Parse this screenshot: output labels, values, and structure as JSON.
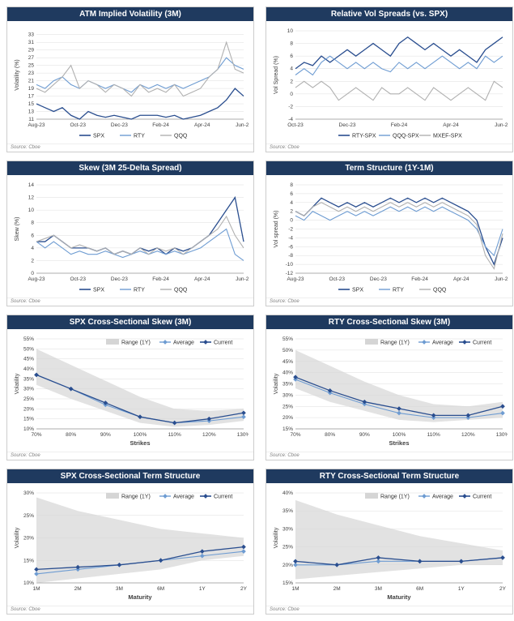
{
  "source_text": "Source: Cboe",
  "palette": {
    "navy": "#1f3a5f",
    "dark_blue": "#2a4e8f",
    "mid_blue": "#6e9cd2",
    "light_gray": "#b0b0b0",
    "grid": "#dddddd",
    "text": "#404040",
    "range_fill": "#d5d5d5"
  },
  "charts": [
    {
      "id": "atm_iv",
      "title": "ATM Implied Volatility (3M)",
      "type": "line",
      "ylabel": "Volatility (%)",
      "xticks": [
        "Aug-23",
        "Oct-23",
        "Dec-23",
        "Feb-24",
        "Apr-24",
        "Jun-24"
      ],
      "ylim": [
        11,
        34
      ],
      "ytick_step": 2,
      "legend_pos": "bottom",
      "series": [
        {
          "name": "SPX",
          "color": "#2a4e8f",
          "width": 1.3,
          "y": [
            15,
            14,
            13,
            14,
            12,
            11,
            13,
            12,
            11.5,
            12,
            11.5,
            11,
            12,
            12,
            12,
            11.5,
            12,
            11,
            11.5,
            12,
            13,
            14,
            16,
            19,
            17
          ]
        },
        {
          "name": "RTY",
          "color": "#6e9cd2",
          "width": 1.1,
          "y": [
            20,
            19,
            21,
            22,
            20,
            19,
            21,
            20,
            19,
            20,
            19,
            18,
            20,
            19,
            20,
            19,
            20,
            19,
            20,
            21,
            22,
            24,
            27,
            25,
            24
          ]
        },
        {
          "name": "QQQ",
          "color": "#b0b0b0",
          "width": 1.1,
          "y": [
            19,
            18,
            20,
            22,
            25,
            19,
            21,
            20,
            18,
            20,
            19,
            17,
            20,
            18,
            19,
            18,
            20,
            17,
            18,
            19,
            22,
            24,
            31,
            24,
            23
          ]
        }
      ]
    },
    {
      "id": "rel_spreads",
      "title": "Relative Vol Spreads (vs. SPX)",
      "type": "line",
      "ylabel": "Vol Spread (%)",
      "xticks": [
        "Oct-23",
        "Dec-23",
        "Feb-24",
        "Apr-24",
        "Jun-24"
      ],
      "ylim": [
        -4,
        10
      ],
      "ytick_step": 2,
      "legend_pos": "bottom",
      "series": [
        {
          "name": "RTY-SPX",
          "color": "#2a4e8f",
          "width": 1.3,
          "y": [
            4,
            5,
            4.5,
            6,
            5,
            6,
            7,
            6,
            7,
            8,
            7,
            6,
            8,
            9,
            8,
            7,
            8,
            7,
            6,
            7,
            6,
            5,
            7,
            8,
            9
          ]
        },
        {
          "name": "QQQ-SPX",
          "color": "#6e9cd2",
          "width": 1.1,
          "y": [
            3,
            4,
            3,
            5,
            6,
            5,
            4,
            5,
            4,
            5,
            4,
            3.5,
            5,
            4,
            5,
            4,
            5,
            6,
            5,
            4,
            5,
            4,
            6,
            5,
            6
          ]
        },
        {
          "name": "MXEF-SPX",
          "color": "#b0b0b0",
          "width": 1.1,
          "y": [
            1,
            2,
            1,
            2,
            1,
            -1,
            0,
            1,
            0,
            -1,
            1,
            0,
            0,
            1,
            0,
            -1,
            1,
            0,
            -1,
            0,
            1,
            0,
            -1,
            2,
            1
          ]
        }
      ]
    },
    {
      "id": "skew",
      "title": "Skew (3M 25-Delta Spread)",
      "type": "line",
      "ylabel": "Skew (%)",
      "xticks": [
        "Aug-23",
        "Oct-23",
        "Dec-23",
        "Feb-24",
        "Apr-24",
        "Jun-24"
      ],
      "ylim": [
        0,
        14
      ],
      "ytick_step": 2,
      "legend_pos": "bottom",
      "series": [
        {
          "name": "SPX",
          "color": "#2a4e8f",
          "width": 1.3,
          "y": [
            5,
            5,
            6,
            5,
            4,
            4,
            4,
            3.5,
            4,
            3,
            3.5,
            3,
            4,
            3.5,
            4,
            3,
            4,
            3.5,
            4,
            5,
            6,
            8,
            10,
            12,
            5
          ]
        },
        {
          "name": "RTY",
          "color": "#6e9cd2",
          "width": 1.1,
          "y": [
            5,
            4,
            5,
            4,
            3,
            3.5,
            3,
            3,
            3.5,
            3,
            2.5,
            3,
            3.5,
            3,
            3.5,
            3,
            3.5,
            3,
            3.5,
            4,
            5,
            6,
            7,
            3,
            2
          ]
        },
        {
          "name": "QQQ",
          "color": "#b0b0b0",
          "width": 1.1,
          "y": [
            5,
            5.5,
            6,
            5,
            4,
            4.5,
            4,
            3.5,
            4,
            3,
            3.5,
            3,
            4,
            3,
            4,
            3.5,
            4,
            3,
            4,
            5,
            6,
            7,
            9,
            6,
            4
          ]
        }
      ]
    },
    {
      "id": "term",
      "title": "Term Structure (1Y-1M)",
      "type": "line",
      "ylabel": "Vol spread (%)",
      "xticks": [
        "Aug-23",
        "Oct-23",
        "Dec-23",
        "Feb-24",
        "Apr-24",
        "Jun-24"
      ],
      "ylim": [
        -12,
        8
      ],
      "ytick_step": 2,
      "legend_pos": "bottom",
      "series": [
        {
          "name": "SPX",
          "color": "#2a4e8f",
          "width": 1.3,
          "y": [
            2,
            1,
            3,
            5,
            4,
            3,
            4,
            3,
            4,
            3,
            4,
            5,
            4,
            5,
            4,
            5,
            4,
            5,
            4,
            3,
            2,
            0,
            -6,
            -10,
            -4
          ]
        },
        {
          "name": "RTY",
          "color": "#6e9cd2",
          "width": 1.1,
          "y": [
            1,
            0,
            2,
            1,
            0,
            1,
            2,
            1,
            2,
            1,
            2,
            3,
            2,
            3,
            2,
            3,
            2,
            3,
            2,
            1,
            0,
            -2,
            -6,
            -8,
            -2
          ]
        },
        {
          "name": "QQQ",
          "color": "#b0b0b0",
          "width": 1.1,
          "y": [
            2,
            1,
            3,
            4,
            3,
            2,
            3,
            2,
            3,
            2,
            3,
            4,
            3,
            4,
            3,
            4,
            3,
            4,
            3,
            2,
            1,
            -1,
            -8,
            -11,
            -3
          ]
        }
      ]
    },
    {
      "id": "spx_skew_cs",
      "title": "SPX Cross-Sectional Skew (3M)",
      "type": "range_line",
      "ylabel": "Volatility",
      "xlabel": "Strikes",
      "xticks": [
        "70%",
        "80%",
        "90%",
        "100%",
        "110%",
        "120%",
        "130%"
      ],
      "ylim": [
        10,
        55
      ],
      "ytick_step": 5,
      "ytick_fmt": "pct",
      "legend_pos": "top_right",
      "range_label": "Range (1Y)",
      "series": [
        {
          "name": "Average",
          "color": "#6e9cd2",
          "width": 1.1,
          "marker": "diamond",
          "y": [
            37,
            30,
            22,
            16,
            13,
            14,
            16
          ]
        },
        {
          "name": "Current",
          "color": "#2a4e8f",
          "width": 1.3,
          "marker": "diamond",
          "y": [
            37,
            30,
            23,
            16,
            13,
            15,
            18
          ]
        }
      ],
      "range": {
        "hi": [
          50,
          42,
          34,
          26,
          20,
          19,
          20
        ],
        "lo": [
          32,
          25,
          19,
          13,
          11,
          12,
          14
        ]
      }
    },
    {
      "id": "rty_skew_cs",
      "title": "RTY Cross-Sectional Skew (3M)",
      "type": "range_line",
      "ylabel": "Volatility",
      "xlabel": "Strikes",
      "xticks": [
        "70%",
        "80%",
        "90%",
        "100%",
        "110%",
        "120%",
        "130%"
      ],
      "ylim": [
        15,
        55
      ],
      "ytick_step": 5,
      "ytick_fmt": "pct",
      "legend_pos": "top_right",
      "range_label": "Range (1Y)",
      "series": [
        {
          "name": "Average",
          "color": "#6e9cd2",
          "width": 1.1,
          "marker": "diamond",
          "y": [
            37,
            31,
            26,
            22,
            20,
            20,
            22
          ]
        },
        {
          "name": "Current",
          "color": "#2a4e8f",
          "width": 1.3,
          "marker": "diamond",
          "y": [
            38,
            32,
            27,
            24,
            21,
            21,
            25
          ]
        }
      ],
      "range": {
        "hi": [
          50,
          43,
          36,
          30,
          26,
          25,
          27
        ],
        "lo": [
          33,
          27,
          23,
          19,
          18,
          19,
          20
        ]
      }
    },
    {
      "id": "spx_term_cs",
      "title": "SPX Cross-Sectional Term Structure",
      "type": "range_line",
      "ylabel": "Volatility",
      "xlabel": "Maturity",
      "xticks": [
        "1M",
        "2M",
        "3M",
        "6M",
        "1Y",
        "2Y"
      ],
      "ylim": [
        10,
        30
      ],
      "ytick_step": 5,
      "ytick_fmt": "pct",
      "legend_pos": "top_right",
      "range_label": "Range (1Y)",
      "series": [
        {
          "name": "Average",
          "color": "#6e9cd2",
          "width": 1.1,
          "marker": "diamond",
          "y": [
            12,
            13,
            14,
            15,
            16,
            17
          ]
        },
        {
          "name": "Current",
          "color": "#2a4e8f",
          "width": 1.3,
          "marker": "diamond",
          "y": [
            13,
            13.5,
            14,
            15,
            17,
            18
          ]
        }
      ],
      "range": {
        "hi": [
          29,
          26,
          24,
          22,
          21,
          20
        ],
        "lo": [
          10,
          11,
          12,
          13,
          15,
          16
        ]
      }
    },
    {
      "id": "rty_term_cs",
      "title": "RTY Cross-Sectional Term Structure",
      "type": "range_line",
      "ylabel": "Volatility",
      "xlabel": "Maturity",
      "xticks": [
        "1M",
        "2M",
        "3M",
        "6M",
        "1Y",
        "2Y"
      ],
      "ylim": [
        15,
        40
      ],
      "ytick_step": 5,
      "ytick_fmt": "pct",
      "legend_pos": "top_right",
      "range_label": "Range (1Y)",
      "series": [
        {
          "name": "Average",
          "color": "#6e9cd2",
          "width": 1.1,
          "marker": "diamond",
          "y": [
            20,
            20,
            21,
            21,
            21,
            22
          ]
        },
        {
          "name": "Current",
          "color": "#2a4e8f",
          "width": 1.3,
          "marker": "diamond",
          "y": [
            21,
            20,
            22,
            21,
            21,
            22
          ]
        }
      ],
      "range": {
        "hi": [
          38,
          34,
          31,
          28,
          26,
          24
        ],
        "lo": [
          16,
          17,
          18,
          19,
          20,
          20
        ]
      }
    }
  ]
}
